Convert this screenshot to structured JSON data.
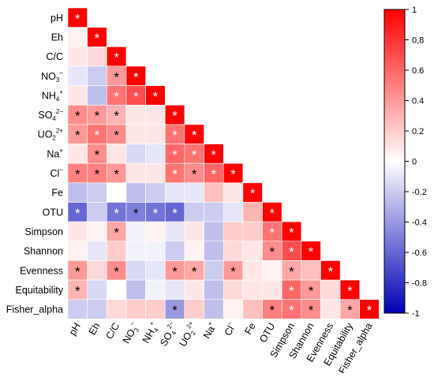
{
  "chart_data": {
    "type": "heatmap",
    "title": "",
    "xlabel": "",
    "ylabel": "",
    "variables": [
      "pH",
      "Eh",
      "C/C",
      "NO3-",
      "NH4+",
      "SO42-",
      "UO22+",
      "Na+",
      "Cl-",
      "Fe",
      "OTU",
      "Simpson",
      "Shannon",
      "Evenness",
      "Equitability",
      "Fisher_alpha"
    ],
    "row_labels": [
      {
        "base": "pH",
        "sup": "",
        "sub": ""
      },
      {
        "base": "Eh",
        "sup": "",
        "sub": ""
      },
      {
        "base": "C/C",
        "sup": "",
        "sub": ""
      },
      {
        "base": "NO",
        "sup": "−",
        "sub": "3"
      },
      {
        "base": "NH",
        "sup": "+",
        "sub": "4"
      },
      {
        "base": "SO",
        "sup": "2−",
        "sub": "4"
      },
      {
        "base": "UO",
        "sup": "2+",
        "sub": "2"
      },
      {
        "base": "Na",
        "sup": "+",
        "sub": ""
      },
      {
        "base": "Cl",
        "sup": "−",
        "sub": ""
      },
      {
        "base": "Fe",
        "sup": "",
        "sub": ""
      },
      {
        "base": "OTU",
        "sup": "",
        "sub": ""
      },
      {
        "base": "Simpson",
        "sup": "",
        "sub": ""
      },
      {
        "base": "Shannon",
        "sup": "",
        "sub": ""
      },
      {
        "base": "Evenness",
        "sup": "",
        "sub": ""
      },
      {
        "base": "Equitability",
        "sup": "",
        "sub": ""
      },
      {
        "base": "Fisher_alpha",
        "sup": "",
        "sub": ""
      }
    ],
    "values": [
      [
        1.0
      ],
      [
        0.05,
        1.0
      ],
      [
        0.1,
        0.15,
        1.0
      ],
      [
        -0.1,
        -0.2,
        0.4,
        1.0
      ],
      [
        0.1,
        -0.25,
        0.55,
        0.7,
        1.0
      ],
      [
        0.45,
        0.4,
        0.3,
        0.1,
        0.1,
        1.0
      ],
      [
        0.4,
        0.55,
        0.45,
        0.1,
        0.1,
        0.55,
        1.0
      ],
      [
        0.1,
        0.45,
        0.1,
        -0.15,
        -0.1,
        0.6,
        0.55,
        1.0
      ],
      [
        0.5,
        0.5,
        0.4,
        0.1,
        0.1,
        0.55,
        0.45,
        0.6,
        1.0
      ],
      [
        -0.25,
        -0.2,
        0.0,
        -0.25,
        -0.2,
        -0.1,
        -0.1,
        0.25,
        0.1,
        1.0
      ],
      [
        -0.6,
        -0.2,
        -0.55,
        -0.5,
        -0.55,
        -0.6,
        -0.2,
        -0.2,
        -0.1,
        0.3,
        1.0
      ],
      [
        0.1,
        0.05,
        0.35,
        -0.05,
        0.05,
        -0.1,
        0.1,
        -0.25,
        0.2,
        0.2,
        0.55,
        1.0
      ],
      [
        0.05,
        -0.1,
        0.2,
        -0.05,
        -0.05,
        -0.2,
        0.05,
        -0.25,
        0.15,
        0.1,
        0.45,
        0.7,
        1.0
      ],
      [
        0.4,
        0.15,
        0.45,
        -0.15,
        -0.1,
        0.4,
        0.35,
        -0.2,
        0.4,
        0.1,
        0.05,
        0.35,
        0.25,
        1.0
      ],
      [
        0.3,
        -0.15,
        0.0,
        -0.25,
        -0.05,
        -0.1,
        0.1,
        -0.25,
        0.15,
        0.1,
        0.1,
        0.6,
        0.4,
        0.15,
        1.0
      ],
      [
        -0.2,
        -0.2,
        0.15,
        0.2,
        0.2,
        -0.4,
        0.2,
        -0.25,
        0.05,
        0.25,
        0.5,
        0.55,
        0.45,
        0.1,
        0.35,
        1.0
      ]
    ],
    "significant": [
      [
        1
      ],
      [
        0,
        1
      ],
      [
        0,
        0,
        1
      ],
      [
        0,
        0,
        1,
        1
      ],
      [
        0,
        0,
        1,
        1,
        1
      ],
      [
        1,
        1,
        1,
        0,
        0,
        1
      ],
      [
        1,
        1,
        1,
        0,
        0,
        1,
        1
      ],
      [
        0,
        1,
        0,
        0,
        0,
        1,
        1,
        1
      ],
      [
        1,
        1,
        1,
        0,
        0,
        1,
        1,
        1,
        1
      ],
      [
        0,
        0,
        0,
        0,
        0,
        0,
        0,
        0,
        0,
        1
      ],
      [
        1,
        0,
        1,
        1,
        1,
        1,
        0,
        0,
        0,
        0,
        1
      ],
      [
        0,
        0,
        1,
        0,
        0,
        0,
        0,
        0,
        0,
        0,
        1,
        1
      ],
      [
        0,
        0,
        0,
        0,
        0,
        0,
        0,
        0,
        0,
        0,
        1,
        1,
        1
      ],
      [
        1,
        0,
        1,
        0,
        0,
        1,
        1,
        0,
        1,
        0,
        0,
        1,
        0,
        1
      ],
      [
        1,
        0,
        0,
        0,
        0,
        0,
        0,
        0,
        0,
        0,
        0,
        1,
        1,
        0,
        1
      ],
      [
        0,
        0,
        0,
        0,
        0,
        1,
        0,
        0,
        0,
        0,
        1,
        1,
        1,
        0,
        1,
        1
      ]
    ],
    "significance_marker": "*",
    "colorbar": {
      "min": -1,
      "max": 1,
      "ticks": [
        "1",
        "0,8",
        "0.6",
        "0.4",
        "0.2",
        "0",
        "-0.2",
        "-0.4",
        "-0.6",
        "-0.8",
        "-1"
      ],
      "tick_values": [
        1,
        0.8,
        0.6,
        0.4,
        0.2,
        0,
        -0.2,
        -0.4,
        -0.6,
        -0.8,
        -1
      ],
      "colors": {
        "negative": "#0000b4",
        "neutral": "#ffffff",
        "positive": "#ff0000"
      }
    },
    "legend_position": "right",
    "grid": false
  }
}
